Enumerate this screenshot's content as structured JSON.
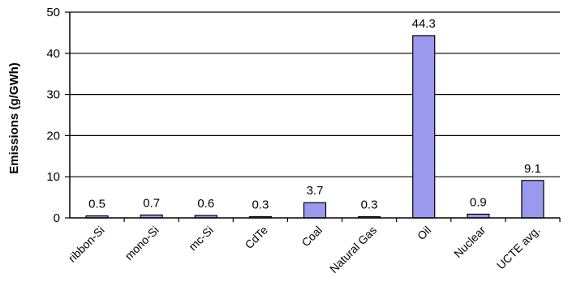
{
  "chart_data": {
    "type": "bar",
    "title": "",
    "xlabel": "",
    "ylabel": "Emissions (g/GWh)",
    "categories": [
      "ribbon-Si",
      "mono-Si",
      "mc-Si",
      "CdTe",
      "Coal",
      "Natural Gas",
      "Oil",
      "Nuclear",
      "UCTE avg."
    ],
    "values": [
      0.5,
      0.7,
      0.6,
      0.3,
      3.7,
      0.3,
      44.3,
      0.9,
      9.1
    ],
    "value_labels": [
      "0.5",
      "0.7",
      "0.6",
      "0.3",
      "3.7",
      "0.3",
      "44.3",
      "0.9",
      "9.1"
    ],
    "ylim": [
      0,
      50
    ],
    "yticks": [
      0,
      10,
      20,
      30,
      40,
      50
    ],
    "ytick_labels": [
      "0",
      "10",
      "20",
      "30",
      "40",
      "50"
    ],
    "grid": true,
    "bar_color": "#9999ee",
    "bar_edge_color": "#000000"
  }
}
